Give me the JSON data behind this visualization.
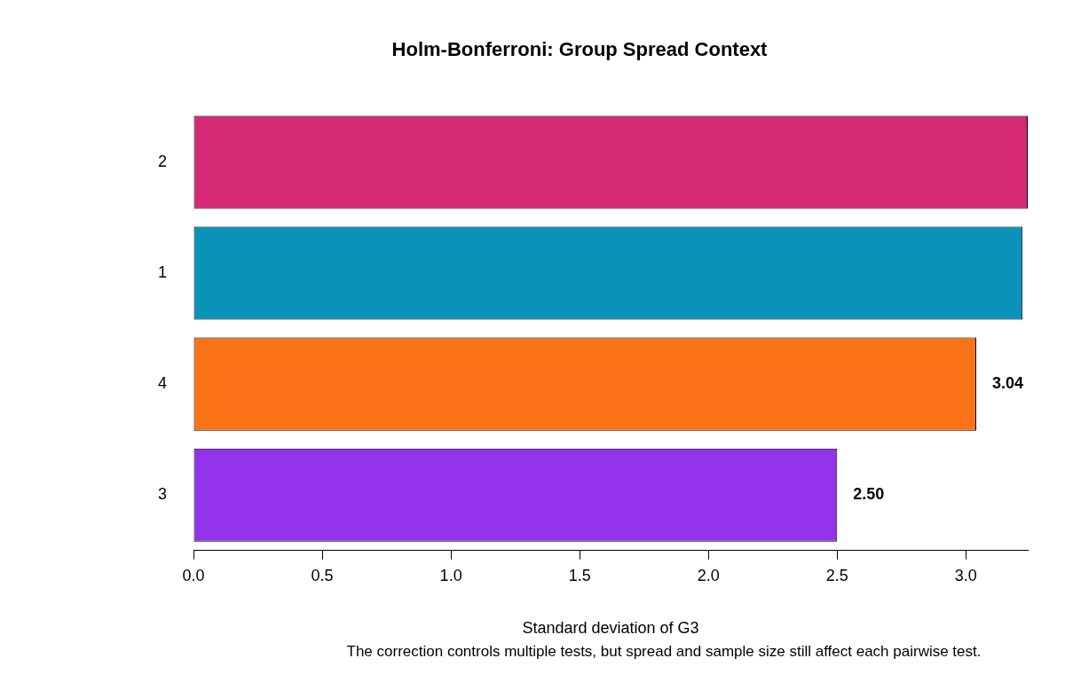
{
  "chart_data": {
    "type": "bar",
    "orientation": "horizontal",
    "title": "Holm-Bonferroni: Group Spread Context",
    "xlabel": "Standard deviation of G3",
    "annotations": [
      "The correction controls multiple tests, but spread and sample size still affect each pairwise test."
    ],
    "categories": [
      "2",
      "1",
      "4",
      "3"
    ],
    "values": [
      3.24,
      3.22,
      3.04,
      2.5
    ],
    "value_labels": [
      null,
      null,
      "3.04",
      "2.50"
    ],
    "colors": [
      "#d62976",
      "#0a93b8",
      "#f97316",
      "#9333ea"
    ],
    "xlim": [
      0,
      3.24
    ],
    "xticks": [
      {
        "value": 0,
        "label": "0.0"
      },
      {
        "value": 0.5,
        "label": "0.5"
      },
      {
        "value": 1,
        "label": "1.0"
      },
      {
        "value": 1.5,
        "label": "1.5"
      },
      {
        "value": 2,
        "label": "2.0"
      },
      {
        "value": 2.5,
        "label": "2.5"
      },
      {
        "value": 3,
        "label": "3.0"
      }
    ],
    "grid": false,
    "legend": false
  }
}
